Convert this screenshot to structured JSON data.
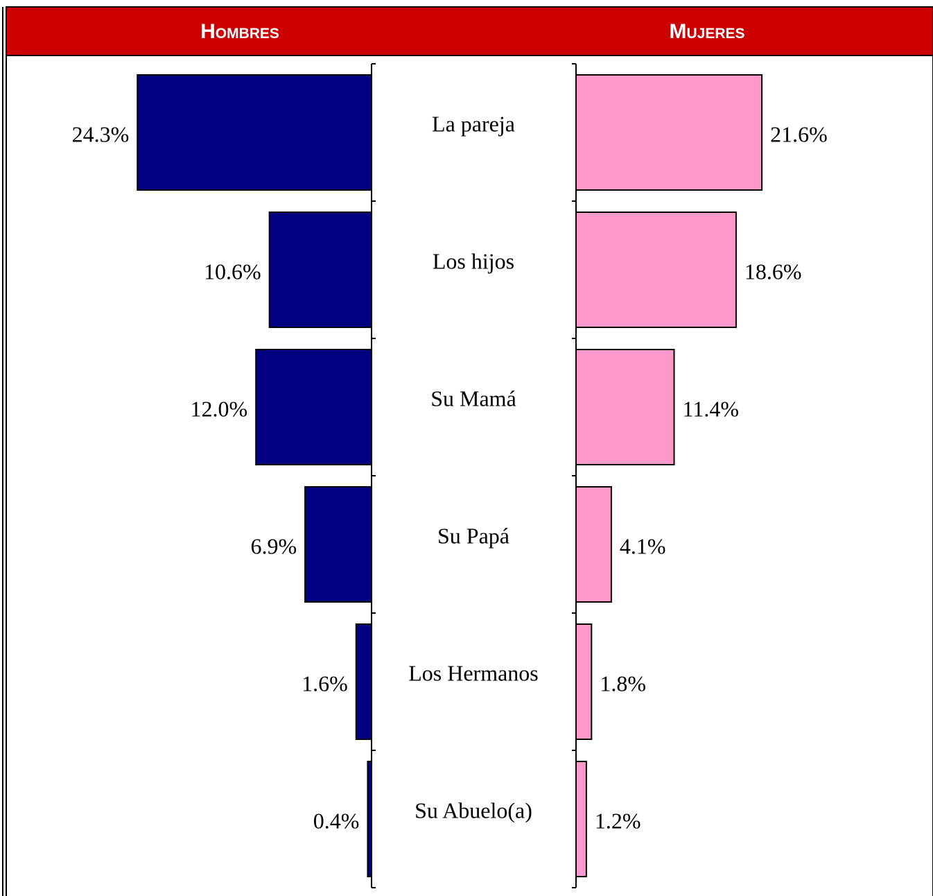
{
  "chart_data": {
    "type": "butterfly",
    "categories": [
      "La pareja",
      "Los hijos",
      "Su Mamá",
      "Su Papá",
      "Los Hermanos",
      "Su Abuelo(a)"
    ],
    "series": [
      {
        "name": "Hombres",
        "color": "#000080",
        "xlim": [
          0,
          37.7
        ],
        "values": [
          24.3,
          10.6,
          12.0,
          6.9,
          1.6,
          0.4
        ],
        "value_labels": [
          "24.3%",
          "10.6%",
          "12.0%",
          "6.9%",
          "1.6%",
          "0.4%"
        ]
      },
      {
        "name": "Mujeres",
        "color": "#ff99cc",
        "xlim": [
          0,
          41
        ],
        "values": [
          21.6,
          18.6,
          11.4,
          4.1,
          1.8,
          1.2
        ],
        "value_labels": [
          "21.6%",
          "18.6%",
          "11.4%",
          "4.1%",
          "1.8%",
          "1.2%"
        ]
      }
    ]
  }
}
